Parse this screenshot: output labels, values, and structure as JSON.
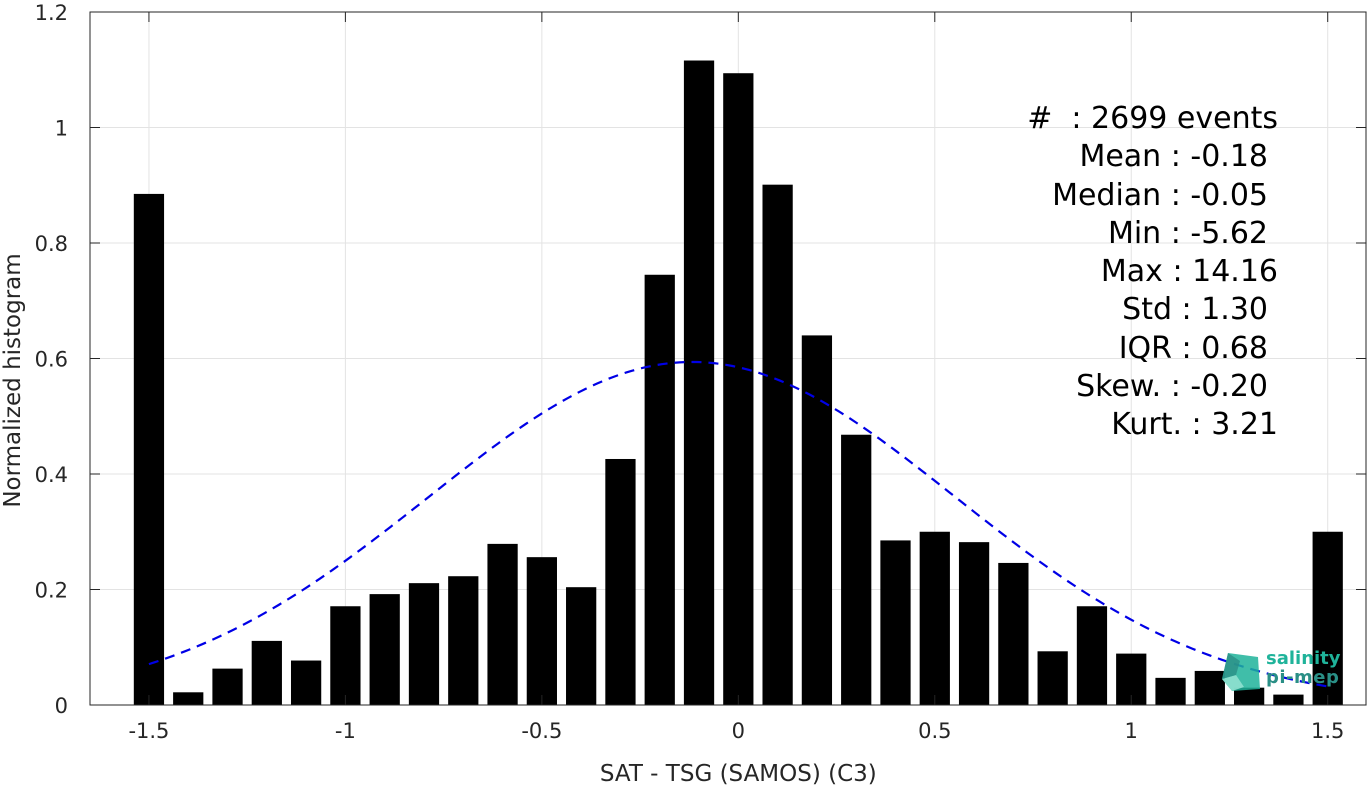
{
  "chart_data": {
    "type": "bar",
    "xlabel": "SAT - TSG (SAMOS) (C3)",
    "ylabel": "Normalized histogram",
    "xlim": [
      -1.65,
      1.6
    ],
    "ylim": [
      0,
      1.2
    ],
    "xticks": [
      -1.5,
      -1,
      -0.5,
      0,
      0.5,
      1,
      1.5
    ],
    "xtick_labels": [
      "-1.5",
      "-1",
      "-0.5",
      "0",
      "0.5",
      "1",
      "1.5"
    ],
    "yticks": [
      0,
      0.2,
      0.4,
      0.6,
      0.8,
      1,
      1.2
    ],
    "ytick_labels": [
      "0",
      "0.2",
      "0.4",
      "0.6",
      "0.8",
      "1",
      "1.2"
    ],
    "grid": true,
    "bar_color": "#000000",
    "x": [
      -1.5,
      -1.4,
      -1.3,
      -1.2,
      -1.1,
      -1.0,
      -0.9,
      -0.8,
      -0.7,
      -0.6,
      -0.5,
      -0.4,
      -0.3,
      -0.2,
      -0.1,
      0.0,
      0.1,
      0.2,
      0.3,
      0.4,
      0.5,
      0.6,
      0.7,
      0.8,
      0.9,
      1.0,
      1.1,
      1.2,
      1.3,
      1.4,
      1.5
    ],
    "values": [
      0.885,
      0.022,
      0.063,
      0.111,
      0.077,
      0.171,
      0.192,
      0.211,
      0.223,
      0.279,
      0.256,
      0.204,
      0.426,
      0.745,
      1.116,
      1.094,
      0.901,
      0.64,
      0.468,
      0.285,
      0.3,
      0.282,
      0.246,
      0.093,
      0.171,
      0.089,
      0.047,
      0.059,
      0.03,
      0.018,
      0.3
    ],
    "fit_curve": {
      "style": "dashed",
      "color": "#0000e6",
      "mean": -0.118,
      "sigma": 0.67,
      "peak": 0.594,
      "x_range": [
        -1.5,
        1.5
      ]
    },
    "stats": [
      "#  : 2699 events",
      "Mean : -0.18",
      "Median : -0.05",
      "Min : -5.62",
      "Max : 14.16",
      "Std : 1.30",
      "IQR : 0.68",
      "Skew. : -0.20",
      "Kurt. : 3.21"
    ]
  },
  "logo": {
    "line1": "salinity",
    "line2": "pi-mep"
  }
}
